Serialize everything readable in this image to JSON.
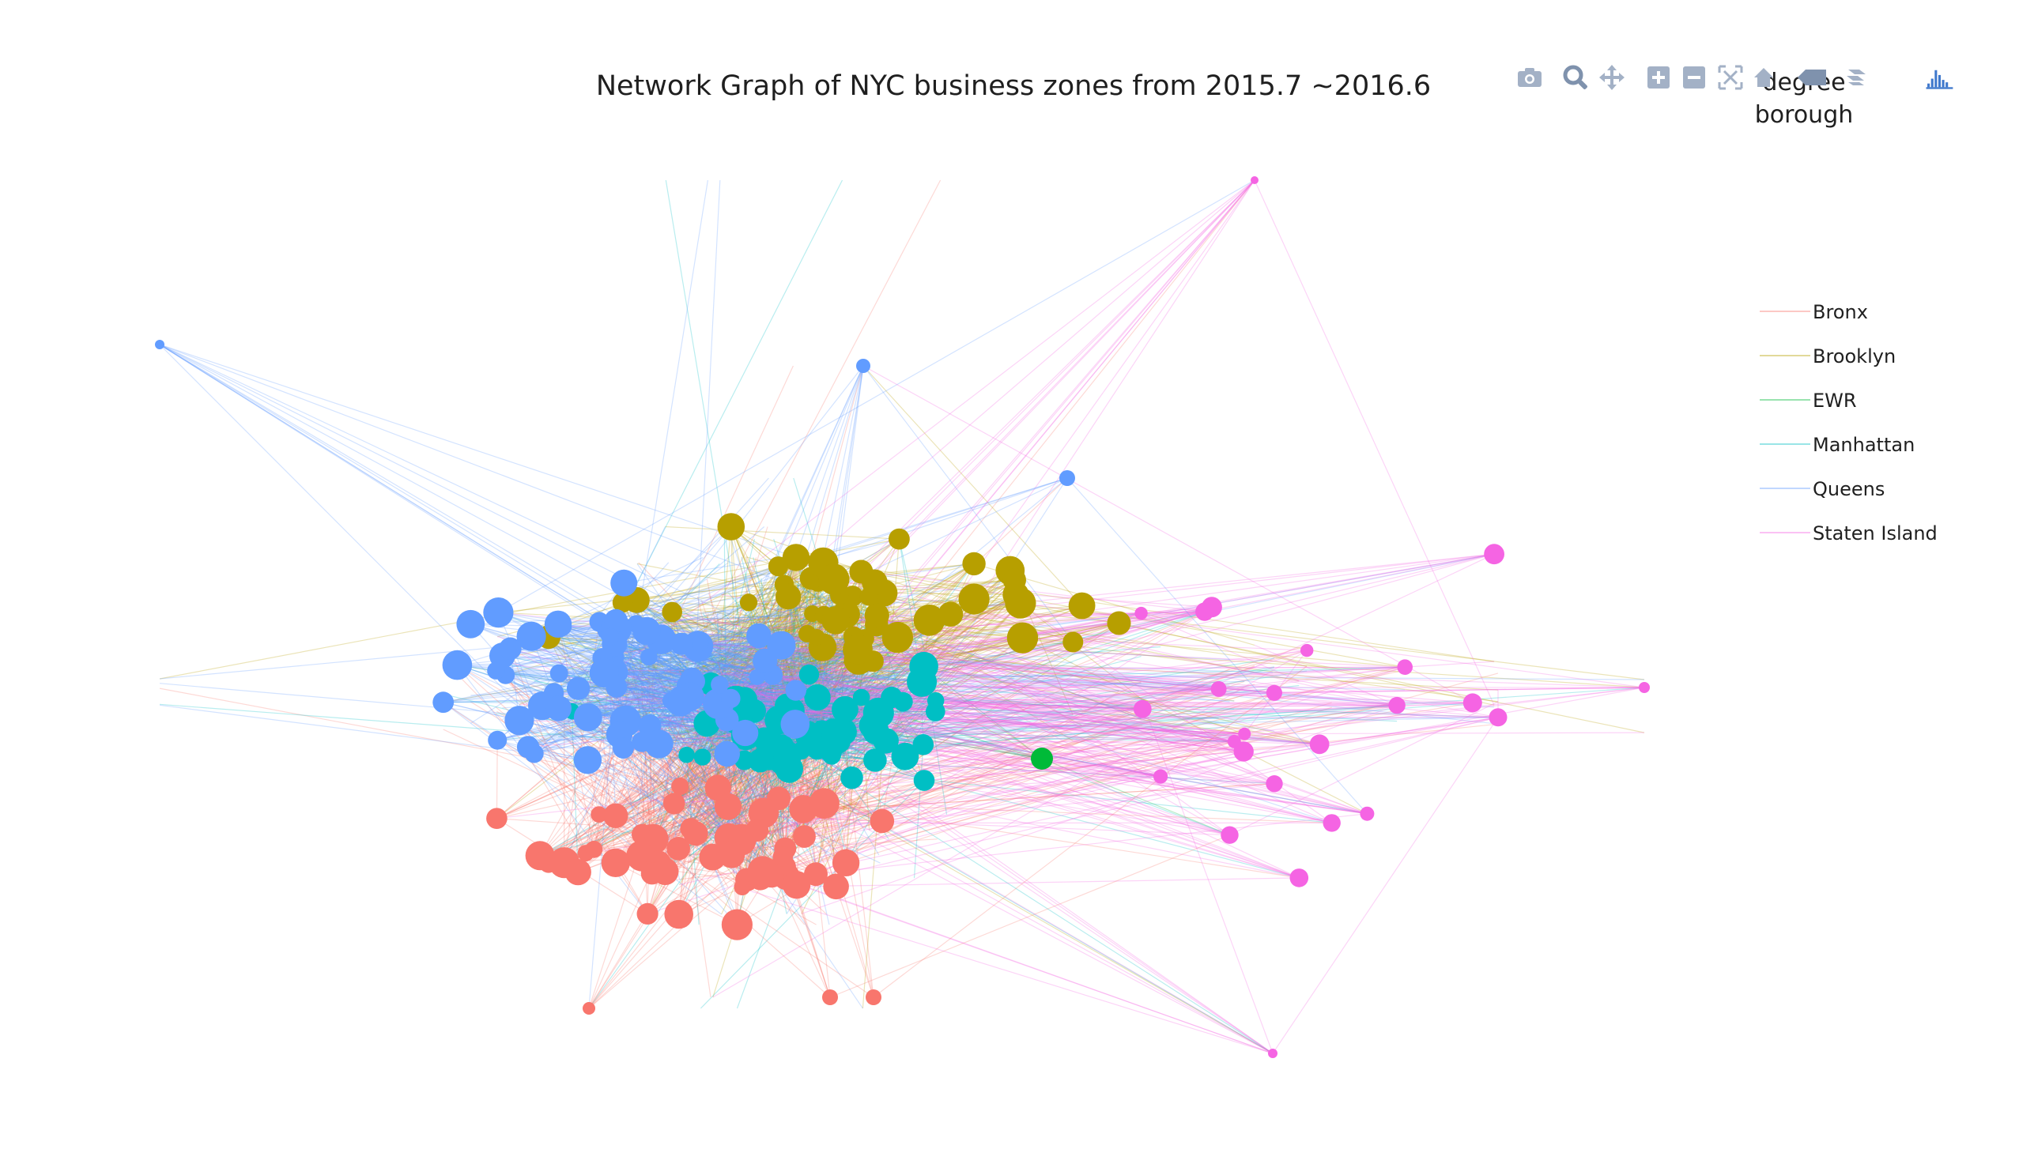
{
  "chart_data": {
    "type": "network",
    "title": "Network Graph of NYC business zones from 2015.7 ~2016.6",
    "legend_title": "degree\nborough",
    "legend_title_lines": [
      "degree",
      "borough"
    ],
    "legend_position": "top-right",
    "size_encoding": "degree",
    "color_encoding": "borough",
    "series": [
      {
        "name": "Bronx",
        "color": "#F8766D",
        "node_count": 55,
        "region": "bottom-center"
      },
      {
        "name": "Brooklyn",
        "color": "#B79F00",
        "node_count": 50,
        "region": "top-center"
      },
      {
        "name": "EWR",
        "color": "#00BA38",
        "node_count": 1,
        "region": "center-right"
      },
      {
        "name": "Manhattan",
        "color": "#00BFC4",
        "node_count": 55,
        "region": "center"
      },
      {
        "name": "Queens",
        "color": "#619CFF",
        "node_count": 70,
        "region": "left"
      },
      {
        "name": "Staten Island",
        "color": "#F564E3",
        "node_count": 22,
        "region": "right-periphery"
      }
    ],
    "axes": {
      "visible": false,
      "grid": false
    }
  },
  "modebar": {
    "buttons": [
      {
        "name": "camera-icon",
        "tooltip": "Download plot as a png"
      },
      {
        "name": "zoom-icon",
        "tooltip": "Zoom"
      },
      {
        "name": "pan-icon",
        "tooltip": "Pan"
      },
      {
        "name": "zoom-in-icon",
        "tooltip": "Zoom in"
      },
      {
        "name": "zoom-out-icon",
        "tooltip": "Zoom out"
      },
      {
        "name": "autoscale-icon",
        "tooltip": "Autoscale"
      },
      {
        "name": "reset-axes-icon",
        "tooltip": "Reset axes"
      },
      {
        "name": "hover-closest-icon",
        "tooltip": "Show closest data on hover"
      },
      {
        "name": "hover-compare-icon",
        "tooltip": "Compare data on hover"
      },
      {
        "name": "plotly-logo-icon",
        "tooltip": "Produced with Plotly"
      }
    ],
    "icon_color": "#a3b1c6",
    "active_color": "#7f92ad",
    "logo_color": "#3f78cc"
  }
}
